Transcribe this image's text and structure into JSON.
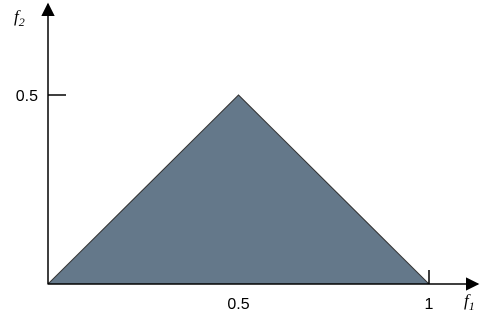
{
  "diagram": {
    "region_color": "#64788a",
    "region_vertices": [
      [
        0,
        0
      ],
      [
        0.5,
        0.5
      ],
      [
        1,
        0
      ]
    ],
    "x_axis": {
      "label_main": "f",
      "label_sub": "1",
      "ticks": [
        {
          "value": 0.5,
          "label": "0.5"
        },
        {
          "value": 1,
          "label": "1"
        }
      ]
    },
    "y_axis": {
      "label_main": "f",
      "label_sub": "2",
      "ticks": [
        {
          "value": 0.5,
          "label": "0.5"
        }
      ]
    }
  }
}
